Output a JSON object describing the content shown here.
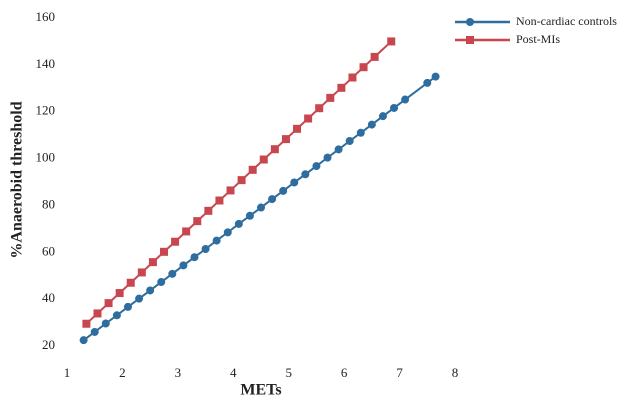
{
  "chart_data": {
    "type": "line",
    "xlabel": "METs",
    "ylabel": "%Anaerobid threshold",
    "xlim": [
      1,
      8
    ],
    "xticks": [
      1,
      2,
      3,
      4,
      5,
      6,
      7,
      8
    ],
    "ylim": [
      20,
      160
    ],
    "yticks": [
      20,
      40,
      60,
      80,
      100,
      120,
      140,
      160
    ],
    "grid": false,
    "legend": "upper right",
    "series": [
      {
        "name": "Non-cardiac controls",
        "color": "#2e6d9e",
        "marker": "circle",
        "x": [
          1.3,
          1.5,
          1.7,
          1.9,
          2.1,
          2.3,
          2.5,
          2.7,
          2.9,
          3.1,
          3.3,
          3.5,
          3.7,
          3.9,
          4.1,
          4.3,
          4.5,
          4.7,
          4.9,
          5.1,
          5.3,
          5.5,
          5.7,
          5.9,
          6.1,
          6.3,
          6.5,
          6.7,
          6.9,
          7.1,
          7.5,
          7.65
        ],
        "values": [
          22.5,
          26.0,
          29.6,
          33.1,
          36.7,
          40.2,
          43.7,
          47.3,
          50.8,
          54.4,
          57.9,
          61.4,
          65.0,
          68.5,
          72.1,
          75.6,
          79.1,
          82.7,
          86.2,
          89.8,
          93.3,
          96.8,
          100.4,
          103.9,
          107.5,
          111.0,
          114.5,
          118.1,
          121.6,
          125.2,
          132.3,
          135.0
        ]
      },
      {
        "name": "Post-MIs",
        "color": "#c8474f",
        "marker": "square",
        "x": [
          1.35,
          1.55,
          1.75,
          1.95,
          2.15,
          2.35,
          2.55,
          2.75,
          2.95,
          3.15,
          3.35,
          3.55,
          3.75,
          3.95,
          4.15,
          4.35,
          4.55,
          4.75,
          4.95,
          5.15,
          5.35,
          5.55,
          5.75,
          5.95,
          6.15,
          6.35,
          6.55,
          6.85
        ],
        "values": [
          29.5,
          33.9,
          38.3,
          42.6,
          47.0,
          51.4,
          55.8,
          60.2,
          64.5,
          68.9,
          73.3,
          77.7,
          82.1,
          86.4,
          90.8,
          95.2,
          99.6,
          104.0,
          108.3,
          112.7,
          117.1,
          121.5,
          125.9,
          130.2,
          134.6,
          139.0,
          143.4,
          150.0
        ]
      }
    ]
  }
}
